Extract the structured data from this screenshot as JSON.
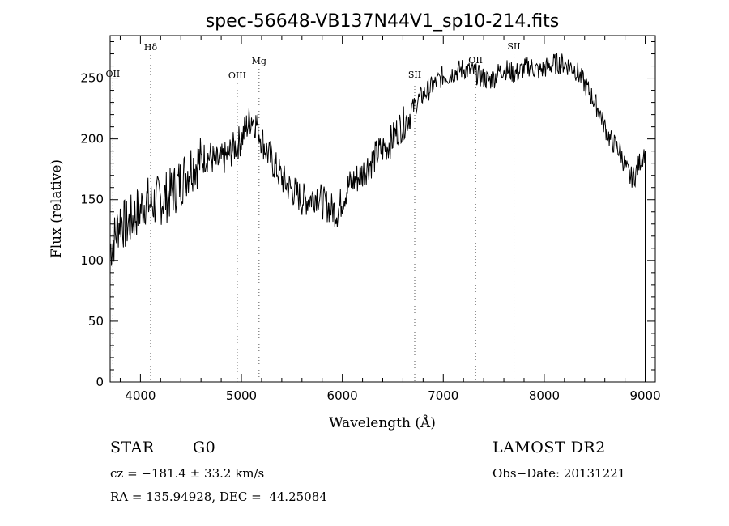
{
  "chart_data": {
    "type": "line",
    "title": "spec-56648-VB137N44V1_sp10-214.fits",
    "xlabel": "Wavelength (Å)",
    "ylabel": "Flux (relative)",
    "xlim": [
      3700,
      9100
    ],
    "ylim": [
      0,
      285
    ],
    "xticks": [
      4000,
      5000,
      6000,
      7000,
      8000,
      9000
    ],
    "yticks": [
      0,
      50,
      100,
      150,
      200,
      250
    ],
    "series": [
      {
        "x": [
          3700,
          3750,
          3800,
          3850,
          3900,
          3950,
          4000,
          4050,
          4100,
          4150,
          4200,
          4250,
          4300,
          4350,
          4400,
          4450,
          4500,
          4550,
          4600,
          4650,
          4700,
          4750,
          4800,
          4850,
          4900,
          4950,
          5000,
          5050,
          5100,
          5150,
          5200,
          5250,
          5300,
          5350,
          5400,
          5450,
          5500,
          5550,
          5600,
          5650,
          5700,
          5750,
          5800,
          5850,
          5900,
          5950,
          6000,
          6050,
          6100,
          6150,
          6200,
          6250,
          6300,
          6350,
          6400,
          6450,
          6500,
          6550,
          6600,
          6650,
          6700,
          6750,
          6800,
          6850,
          6900,
          6950,
          7000,
          7050,
          7100,
          7150,
          7200,
          7250,
          7300,
          7350,
          7400,
          7450,
          7500,
          7550,
          7600,
          7650,
          7700,
          7750,
          7800,
          7850,
          7900,
          7950,
          8000,
          8050,
          8100,
          8150,
          8200,
          8250,
          8300,
          8350,
          8400,
          8450,
          8500,
          8550,
          8600,
          8650,
          8700,
          8750,
          8800,
          8850,
          8900,
          8950,
          9000
        ],
        "y": [
          110,
          120,
          135,
          128,
          132,
          138,
          142,
          150,
          146,
          148,
          150,
          152,
          155,
          160,
          165,
          172,
          178,
          180,
          182,
          186,
          185,
          180,
          182,
          185,
          190,
          195,
          200,
          210,
          218,
          212,
          200,
          190,
          182,
          175,
          168,
          162,
          158,
          155,
          150,
          150,
          152,
          155,
          148,
          145,
          142,
          140,
          150,
          160,
          165,
          168,
          172,
          178,
          182,
          188,
          192,
          195,
          200,
          208,
          212,
          218,
          225,
          232,
          236,
          240,
          244,
          248,
          252,
          252,
          255,
          256,
          258,
          256,
          255,
          252,
          250,
          248,
          250,
          255,
          258,
          256,
          254,
          255,
          258,
          260,
          258,
          256,
          258,
          260,
          262,
          262,
          262,
          260,
          258,
          252,
          245,
          238,
          230,
          222,
          210,
          200,
          195,
          190,
          178,
          168,
          170,
          182,
          190
        ]
      }
    ],
    "line_markers": [
      {
        "name": "OII",
        "x": 3727
      },
      {
        "name": "Hδ",
        "x": 4101
      },
      {
        "name": "OIII",
        "x": 4959
      },
      {
        "name": "Mg",
        "x": 5175
      },
      {
        "name": "SII",
        "x": 6717
      },
      {
        "name": "OII",
        "x": 7320
      },
      {
        "name": "SII",
        "x": 7700
      }
    ],
    "grid": false
  },
  "footer": {
    "object_type": "STAR",
    "subclass": "G0",
    "survey": "LAMOST DR2",
    "cz": "cz = −181.4 ± 33.2 km/s",
    "obs_date": "Obs−Date: 20131221",
    "radec": "RA = 135.94928, DEC =  44.25084"
  }
}
